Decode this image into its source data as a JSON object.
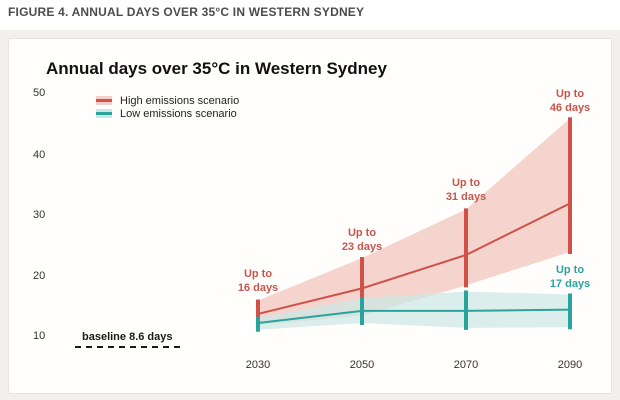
{
  "header": {
    "title": "FIGURE 4. ANNUAL DAYS OVER 35°C IN WESTERN SYDNEY"
  },
  "colors": {
    "high_line": "#cf5148",
    "high_band": "#f4cfc9",
    "low_line": "#2ba39d",
    "low_band": "#cde7e5",
    "baseline_dash": "#1a1a1a",
    "page_margin_bg": "#f2efec",
    "card_bg": "#fffefc"
  },
  "chart_data": {
    "type": "line",
    "title": "Annual days over 35°C in Western Sydney",
    "xlabel": "",
    "ylabel": "",
    "x": [
      2030,
      2050,
      2070,
      2090
    ],
    "x_tick_labels": [
      "2030",
      "2050",
      "2070",
      "2090"
    ],
    "y_ticks": [
      50,
      40,
      30,
      20,
      10
    ],
    "ylim": [
      6.5,
      51
    ],
    "grid": false,
    "legend_position": "top-left",
    "baseline": {
      "value": 8.6,
      "label": "baseline 8.6 days"
    },
    "series": [
      {
        "name": "High emissions scenario",
        "color": "#cf5148",
        "band_color": "#f4cfc9",
        "values": [
          13.8,
          18,
          23.5,
          32
        ],
        "range_low": [
          12,
          13.5,
          18.5,
          24
        ],
        "range_high": [
          16,
          23,
          31,
          46
        ]
      },
      {
        "name": "Low emissions scenario",
        "color": "#2ba39d",
        "band_color": "#cde7e5",
        "values": [
          12.3,
          14.3,
          14.3,
          14.5
        ],
        "range_low": [
          11.2,
          12.3,
          11.5,
          11.6
        ],
        "range_high": [
          13.2,
          16.4,
          17.5,
          17
        ]
      }
    ],
    "annotations": [
      {
        "line1": "Up to",
        "line2": "16 days",
        "x": 2030,
        "series": "high"
      },
      {
        "line1": "Up to",
        "line2": "23 days",
        "x": 2050,
        "series": "high"
      },
      {
        "line1": "Up to",
        "line2": "31 days",
        "x": 2070,
        "series": "high"
      },
      {
        "line1": "Up to",
        "line2": "46 days",
        "x": 2090,
        "series": "high"
      },
      {
        "line1": "Up to",
        "line2": "17 days",
        "x": 2090,
        "series": "low"
      }
    ]
  }
}
